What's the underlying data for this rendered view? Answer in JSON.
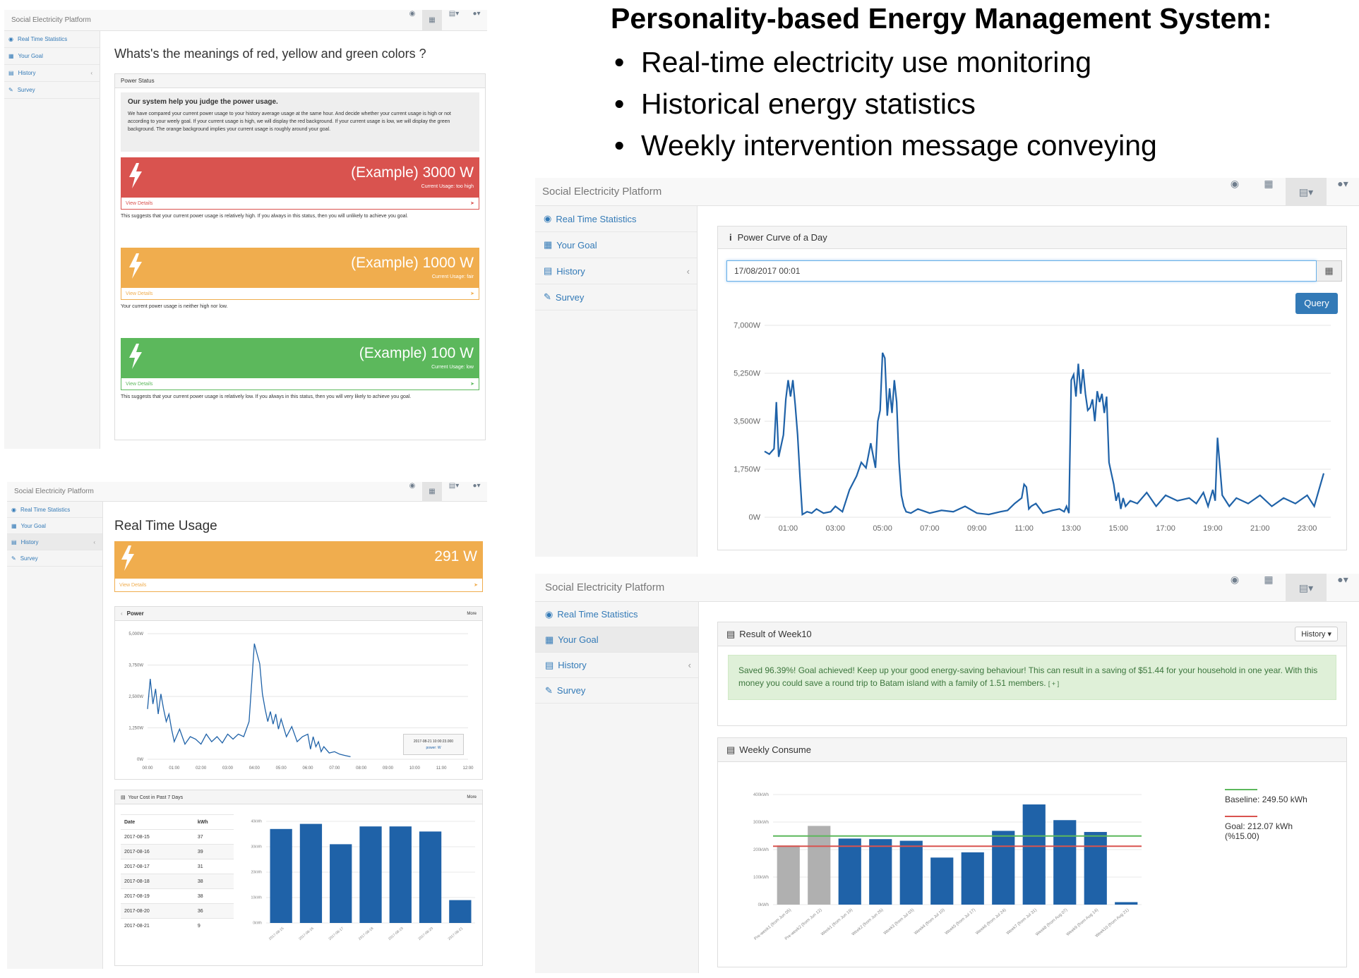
{
  "headline": {
    "title": "Personality-based Energy Management System:",
    "bullets": [
      "Real-time electricity use monitoring",
      "Historical energy statistics",
      "Weekly intervention message conveying"
    ]
  },
  "app": {
    "brand": "Social Electricity Platform",
    "sidebar": [
      "Real Time Statistics",
      "Your Goal",
      "History",
      "Survey"
    ],
    "nav_icons": [
      "dashboard-icon",
      "table-icon",
      "bar-chart-icon",
      "user-icon"
    ]
  },
  "colors": {
    "red": "#d9534f",
    "orange": "#f0ad4e",
    "green": "#5cb85c",
    "blue": "#1f62a8",
    "primary": "#337ab7"
  },
  "panel1": {
    "question": "Whats's the meanings of red, yellow and green colors ?",
    "box_title": "Power Status",
    "intro_title": "Our system help you judge the power usage.",
    "intro_text": "We have compared your current power usage to your history average usage at the same hour. And decide whether your current usage is high or not according to your weely goal. If your current usage is high, we will display the red background. If your current usage is low, we will display the green background. The orange background implies your current usage is roughly around your goal.",
    "cards": [
      {
        "value": "(Example) 3000 W",
        "sub": "Current Usage: too high",
        "details": "View Details",
        "note": "This suggests that your current power usage is relatively high. If you always in this status, then you will unlikely to achieve you goal."
      },
      {
        "value": "(Example) 1000 W",
        "sub": "Current Usage: fair",
        "details": "View Details",
        "note": "Your current power usage is neither high nor low."
      },
      {
        "value": "(Example) 100 W",
        "sub": "Current Usage: low",
        "details": "View Details",
        "note": "This suggests that your current power usage is relatively low. If you always in this status, then you will very likely to achieve you goal."
      }
    ]
  },
  "panel2": {
    "title": "Real Time Usage",
    "current_value": "291 W",
    "details": "View Details",
    "power_title": "Power",
    "more": "More",
    "tooltip": [
      "2017-08-21 10:00:23.000",
      "power: W"
    ],
    "cost_title": "Your Cost in Past 7 Days",
    "table_headers": [
      "Date",
      "kWh"
    ],
    "table_rows": [
      [
        "2017-08-15",
        "37"
      ],
      [
        "2017-08-16",
        "39"
      ],
      [
        "2017-08-17",
        "31"
      ],
      [
        "2017-08-18",
        "38"
      ],
      [
        "2017-08-19",
        "38"
      ],
      [
        "2017-08-20",
        "36"
      ],
      [
        "2017-08-21",
        "9"
      ]
    ]
  },
  "panel3": {
    "box_title": "Power Curve of a Day",
    "date_input": "17/08/2017 00:01",
    "query": "Query"
  },
  "panel4": {
    "result_title": "Result of Week10",
    "history_button": "History",
    "message": "Saved 96.39%! Goal achieved! Keep up your good energy-saving behaviour! This can result in a saving of $51.44 for your household in one year. With this money you could save a round trip to Batam island with a family of 1.51 members.",
    "message_link": "[ + ]",
    "weekly_title": "Weekly Consume",
    "legend_baseline": "Baseline: 249.50 kWh",
    "legend_goal": "Goal: 212.07 kWh",
    "legend_goal_pct": "(%15.00)"
  },
  "chart_data": [
    {
      "id": "power-curve-day",
      "type": "line",
      "title": "Power Curve of a Day",
      "x_ticks": [
        "01:00",
        "03:00",
        "05:00",
        "07:00",
        "09:00",
        "11:00",
        "13:00",
        "15:00",
        "17:00",
        "19:00",
        "21:00",
        "23:00"
      ],
      "y_ticks": [
        "0W",
        "1,750W",
        "3,500W",
        "5,250W",
        "7,000W"
      ],
      "ylim": [
        0,
        7000
      ],
      "xlim": [
        0,
        24
      ],
      "series": [
        {
          "x": [
            0,
            0.2,
            0.4,
            0.5,
            0.6,
            0.8,
            0.9,
            1.0,
            1.1,
            1.2,
            1.3,
            1.4,
            1.5,
            1.6,
            1.7,
            1.8,
            2.0,
            2.2,
            2.5,
            2.8,
            3.0,
            3.3,
            3.6,
            3.9,
            4.1,
            4.3,
            4.5,
            4.7,
            4.8,
            4.9,
            5.0,
            5.1,
            5.2,
            5.3,
            5.4,
            5.5,
            5.6,
            5.7,
            5.8,
            5.9,
            6.0,
            6.2,
            6.5,
            7.0,
            7.5,
            8.0,
            8.5,
            9.0,
            9.5,
            10.0,
            10.3,
            10.6,
            10.9,
            11.0,
            11.1,
            11.2,
            11.3,
            11.5,
            11.8,
            12.2,
            12.5,
            12.7,
            12.8,
            12.9,
            13.0,
            13.1,
            13.2,
            13.3,
            13.4,
            13.5,
            13.6,
            13.7,
            13.8,
            13.9,
            14.0,
            14.1,
            14.2,
            14.3,
            14.4,
            14.5,
            14.6,
            14.7,
            14.8,
            14.9,
            15.0,
            15.1,
            15.2,
            15.3,
            15.5,
            15.8,
            16.2,
            16.6,
            17.0,
            17.5,
            18.0,
            18.3,
            18.6,
            18.8,
            19.0,
            19.1,
            19.2,
            19.4,
            19.7,
            20.0,
            20.5,
            21.0,
            21.5,
            22.0,
            22.5,
            23.0,
            23.3,
            23.5,
            23.7
          ],
          "y": [
            2400,
            2300,
            2500,
            4200,
            2200,
            3000,
            4300,
            5000,
            4400,
            5000,
            4100,
            3000,
            1500,
            100,
            150,
            200,
            150,
            300,
            150,
            200,
            400,
            200,
            1000,
            1500,
            2000,
            1800,
            2700,
            1800,
            3500,
            3900,
            6000,
            5800,
            3700,
            4700,
            3800,
            5000,
            4200,
            2000,
            800,
            400,
            200,
            150,
            300,
            150,
            250,
            200,
            400,
            150,
            100,
            200,
            250,
            500,
            700,
            1200,
            1100,
            300,
            400,
            500,
            150,
            250,
            300,
            200,
            400,
            150,
            5000,
            5200,
            4400,
            5600,
            4500,
            5400,
            4500,
            3900,
            4000,
            4300,
            3500,
            4600,
            4200,
            4500,
            3800,
            4400,
            2000,
            1600,
            1200,
            600,
            900,
            300,
            700,
            400,
            600,
            500,
            900,
            400,
            800,
            600,
            700,
            500,
            900,
            400,
            1000,
            600,
            2900,
            800,
            400,
            700,
            500,
            800,
            400,
            700,
            500,
            800,
            400,
            1000,
            1600
          ]
        }
      ]
    },
    {
      "id": "realtime-power",
      "type": "line",
      "title": "Power",
      "x_ticks": [
        "00:00",
        "01:00",
        "02:00",
        "03:00",
        "04:00",
        "05:00",
        "06:00",
        "07:00",
        "08:00",
        "09:00",
        "10:00",
        "11:00",
        "12:00"
      ],
      "y_ticks": [
        "0W",
        "1,250W",
        "2,500W",
        "3,750W",
        "5,000W"
      ],
      "ylim": [
        0,
        5000
      ],
      "xlim": [
        0,
        12
      ],
      "series": [
        {
          "x": [
            0,
            0.1,
            0.2,
            0.3,
            0.4,
            0.5,
            0.6,
            0.7,
            0.8,
            0.9,
            1.0,
            1.2,
            1.4,
            1.6,
            1.8,
            2.0,
            2.2,
            2.4,
            2.6,
            2.8,
            3.0,
            3.2,
            3.4,
            3.6,
            3.8,
            4.0,
            4.1,
            4.2,
            4.3,
            4.4,
            4.5,
            4.6,
            4.7,
            4.8,
            4.9,
            5.0,
            5.2,
            5.4,
            5.6,
            5.8,
            6.0,
            6.1,
            6.2,
            6.3,
            6.4,
            6.5,
            6.6,
            6.8,
            7.0,
            7.2,
            7.4,
            7.6
          ],
          "y": [
            2000,
            3200,
            2200,
            2800,
            1800,
            2600,
            2000,
            1500,
            1800,
            1200,
            700,
            1200,
            600,
            900,
            800,
            600,
            1000,
            700,
            900,
            650,
            1000,
            800,
            1000,
            900,
            1500,
            4600,
            4200,
            3800,
            2600,
            2000,
            1500,
            1900,
            1400,
            1800,
            1200,
            1600,
            900,
            1300,
            700,
            900,
            1000,
            400,
            900,
            500,
            700,
            300,
            500,
            250,
            300,
            200,
            150,
            100
          ]
        }
      ]
    },
    {
      "id": "cost-7-days",
      "type": "bar",
      "title": "Your Cost in Past 7 Days",
      "categories": [
        "2017-08-15",
        "2017-08-16",
        "2017-08-17",
        "2017-08-18",
        "2017-08-19",
        "2017-08-20",
        "2017-08-21"
      ],
      "values": [
        37,
        39,
        31,
        38,
        38,
        36,
        9
      ],
      "y_ticks": [
        "0kWh",
        "10kWh",
        "20kWh",
        "30kWh",
        "40kWh"
      ],
      "ylim": [
        0,
        40
      ]
    },
    {
      "id": "weekly-consume",
      "type": "bar",
      "title": "Weekly Consume",
      "categories": [
        "Pre-week1 (from Jun 05)",
        "Pre-week2 (from Jun 12)",
        "Week1 (from Jun 19)",
        "Week2 (from Jun 26)",
        "Week3 (from Jul 03)",
        "Week4 (from Jul 10)",
        "Week5 (from Jul 17)",
        "Week6 (from Jul 24)",
        "Week7 (from Jul 31)",
        "Week8 (from Aug 07)",
        "Week9 (from Aug 14)",
        "Week10 (from Aug 21)"
      ],
      "values": [
        215,
        286,
        240,
        238,
        232,
        171,
        190,
        268,
        364,
        307,
        264,
        9
      ],
      "colors": [
        "#b0b0b0",
        "#b0b0b0",
        "#1f62a8",
        "#1f62a8",
        "#1f62a8",
        "#1f62a8",
        "#1f62a8",
        "#1f62a8",
        "#1f62a8",
        "#1f62a8",
        "#1f62a8",
        "#1f62a8"
      ],
      "baseline": 249.5,
      "goal": 212.07,
      "y_ticks": [
        "0kWh",
        "100kWh",
        "200kWh",
        "300kWh",
        "400kWh"
      ],
      "ylim": [
        0,
        400
      ]
    }
  ]
}
